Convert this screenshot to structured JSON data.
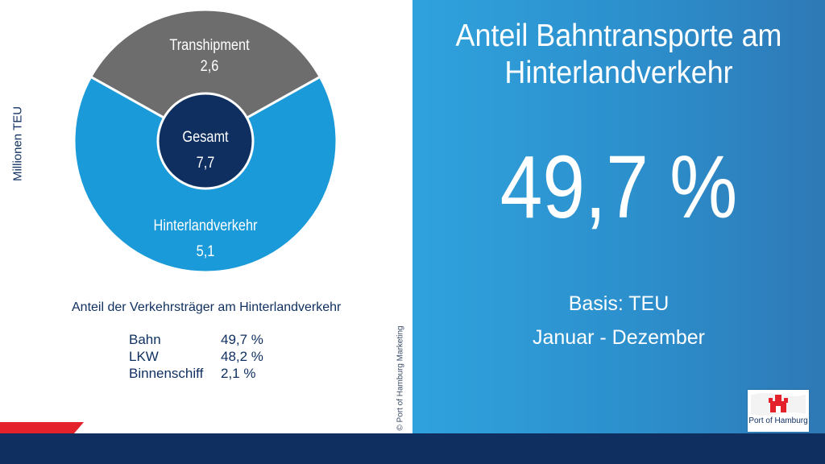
{
  "chart_data": {
    "type": "pie",
    "ylabel": "Millionen TEU",
    "slices": [
      {
        "label": "Transhipment",
        "value": 2.6,
        "value_label": "2,6",
        "color": "#6d6d6d"
      },
      {
        "label": "Hinterlandverkehr",
        "value": 5.1,
        "value_label": "5,1",
        "color": "#1a9ad9"
      }
    ],
    "center": {
      "label": "Gesamt",
      "value": 7.7,
      "value_label": "7,7",
      "color": "#0e2f5f"
    }
  },
  "modal_split": {
    "title": "Anteil der Verkehrsträger am Hinterlandverkehr",
    "rows": [
      {
        "name": "Bahn",
        "value": "49,7 %"
      },
      {
        "name": "LKW",
        "value": "48,2 %"
      },
      {
        "name": "Binnenschiff",
        "value": "2,1 %"
      }
    ]
  },
  "copyright": "© Port of Hamburg Marketing",
  "headline": {
    "line1": "Anteil Bahntransporte am",
    "line2": "Hinterlandverkehr"
  },
  "kpi": {
    "value": "49,7 %"
  },
  "basis": "Basis: TEU",
  "period": "Januar - Dezember",
  "logo": {
    "text": "Port of Hamburg",
    "icon": "hamburg-coat-of-arms-icon"
  },
  "colors": {
    "navy": "#0e2f5f",
    "blue": "#1a9ad9",
    "grey": "#6d6d6d",
    "red": "#e3222b"
  }
}
